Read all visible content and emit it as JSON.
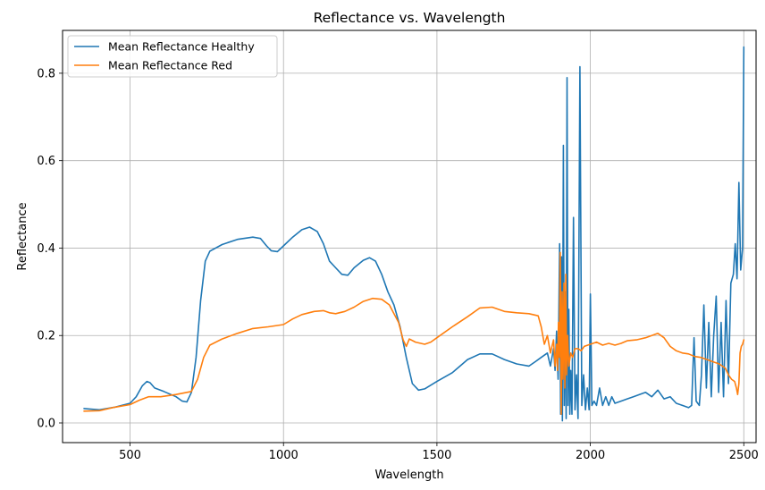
{
  "chart_data": {
    "type": "line",
    "title": "Reflectance vs. Wavelength",
    "xlabel": "Wavelength",
    "ylabel": "Reflectance",
    "xlim": [
      280,
      2540
    ],
    "ylim": [
      -0.045,
      0.898
    ],
    "xticks": [
      500,
      1000,
      1500,
      2000,
      2500
    ],
    "yticks": [
      0.0,
      0.2,
      0.4,
      0.6,
      0.8
    ],
    "ytick_labels": [
      "0.0",
      "0.2",
      "0.4",
      "0.6",
      "0.8"
    ],
    "grid": true,
    "legend_position": "upper-left",
    "series": [
      {
        "name": "Mean Reflectance Healthy",
        "color": "#1f77b4",
        "points": [
          [
            350,
            0.033
          ],
          [
            400,
            0.03
          ],
          [
            450,
            0.036
          ],
          [
            500,
            0.045
          ],
          [
            520,
            0.06
          ],
          [
            540,
            0.085
          ],
          [
            555,
            0.095
          ],
          [
            565,
            0.092
          ],
          [
            580,
            0.08
          ],
          [
            610,
            0.072
          ],
          [
            650,
            0.06
          ],
          [
            670,
            0.05
          ],
          [
            685,
            0.048
          ],
          [
            700,
            0.07
          ],
          [
            715,
            0.15
          ],
          [
            730,
            0.28
          ],
          [
            745,
            0.37
          ],
          [
            760,
            0.393
          ],
          [
            800,
            0.408
          ],
          [
            850,
            0.42
          ],
          [
            900,
            0.425
          ],
          [
            925,
            0.422
          ],
          [
            945,
            0.405
          ],
          [
            960,
            0.394
          ],
          [
            980,
            0.392
          ],
          [
            1000,
            0.405
          ],
          [
            1030,
            0.425
          ],
          [
            1060,
            0.442
          ],
          [
            1085,
            0.448
          ],
          [
            1110,
            0.438
          ],
          [
            1130,
            0.41
          ],
          [
            1150,
            0.37
          ],
          [
            1170,
            0.355
          ],
          [
            1190,
            0.34
          ],
          [
            1210,
            0.338
          ],
          [
            1230,
            0.355
          ],
          [
            1260,
            0.372
          ],
          [
            1280,
            0.378
          ],
          [
            1300,
            0.37
          ],
          [
            1320,
            0.34
          ],
          [
            1340,
            0.3
          ],
          [
            1360,
            0.27
          ],
          [
            1380,
            0.22
          ],
          [
            1400,
            0.15
          ],
          [
            1420,
            0.09
          ],
          [
            1440,
            0.075
          ],
          [
            1460,
            0.078
          ],
          [
            1500,
            0.095
          ],
          [
            1550,
            0.115
          ],
          [
            1600,
            0.145
          ],
          [
            1640,
            0.158
          ],
          [
            1680,
            0.158
          ],
          [
            1720,
            0.145
          ],
          [
            1760,
            0.135
          ],
          [
            1800,
            0.13
          ],
          [
            1820,
            0.14
          ],
          [
            1840,
            0.15
          ],
          [
            1860,
            0.16
          ],
          [
            1870,
            0.13
          ],
          [
            1880,
            0.17
          ],
          [
            1885,
            0.12
          ],
          [
            1890,
            0.21
          ],
          [
            1895,
            0.1
          ],
          [
            1900,
            0.41
          ],
          [
            1903,
            0.02
          ],
          [
            1906,
            0.38
          ],
          [
            1909,
            0.005
          ],
          [
            1912,
            0.635
          ],
          [
            1915,
            0.04
          ],
          [
            1918,
            0.3
          ],
          [
            1921,
            0.01
          ],
          [
            1924,
            0.79
          ],
          [
            1927,
            0.04
          ],
          [
            1930,
            0.26
          ],
          [
            1933,
            0.02
          ],
          [
            1936,
            0.12
          ],
          [
            1940,
            0.02
          ],
          [
            1945,
            0.47
          ],
          [
            1950,
            0.03
          ],
          [
            1955,
            0.11
          ],
          [
            1960,
            0.01
          ],
          [
            1966,
            0.815
          ],
          [
            1972,
            0.04
          ],
          [
            1978,
            0.11
          ],
          [
            1984,
            0.03
          ],
          [
            1990,
            0.08
          ],
          [
            1996,
            0.03
          ],
          [
            2000,
            0.295
          ],
          [
            2005,
            0.04
          ],
          [
            2012,
            0.05
          ],
          [
            2020,
            0.04
          ],
          [
            2030,
            0.08
          ],
          [
            2040,
            0.04
          ],
          [
            2050,
            0.06
          ],
          [
            2060,
            0.04
          ],
          [
            2070,
            0.06
          ],
          [
            2080,
            0.045
          ],
          [
            2100,
            0.05
          ],
          [
            2120,
            0.055
          ],
          [
            2140,
            0.06
          ],
          [
            2160,
            0.065
          ],
          [
            2180,
            0.07
          ],
          [
            2200,
            0.06
          ],
          [
            2220,
            0.075
          ],
          [
            2240,
            0.055
          ],
          [
            2260,
            0.06
          ],
          [
            2280,
            0.045
          ],
          [
            2300,
            0.04
          ],
          [
            2320,
            0.035
          ],
          [
            2330,
            0.04
          ],
          [
            2338,
            0.195
          ],
          [
            2345,
            0.05
          ],
          [
            2355,
            0.04
          ],
          [
            2362,
            0.11
          ],
          [
            2370,
            0.27
          ],
          [
            2378,
            0.08
          ],
          [
            2386,
            0.23
          ],
          [
            2394,
            0.06
          ],
          [
            2402,
            0.2
          ],
          [
            2410,
            0.29
          ],
          [
            2418,
            0.07
          ],
          [
            2426,
            0.23
          ],
          [
            2434,
            0.06
          ],
          [
            2442,
            0.28
          ],
          [
            2450,
            0.09
          ],
          [
            2458,
            0.32
          ],
          [
            2466,
            0.34
          ],
          [
            2472,
            0.41
          ],
          [
            2478,
            0.33
          ],
          [
            2484,
            0.55
          ],
          [
            2490,
            0.35
          ],
          [
            2496,
            0.4
          ],
          [
            2500,
            0.86
          ]
        ]
      },
      {
        "name": "Mean Reflectance Red",
        "color": "#ff7f0e",
        "points": [
          [
            350,
            0.027
          ],
          [
            400,
            0.028
          ],
          [
            450,
            0.036
          ],
          [
            500,
            0.042
          ],
          [
            530,
            0.052
          ],
          [
            560,
            0.06
          ],
          [
            600,
            0.06
          ],
          [
            650,
            0.065
          ],
          [
            700,
            0.072
          ],
          [
            720,
            0.1
          ],
          [
            740,
            0.15
          ],
          [
            760,
            0.178
          ],
          [
            800,
            0.192
          ],
          [
            850,
            0.205
          ],
          [
            900,
            0.216
          ],
          [
            950,
            0.22
          ],
          [
            1000,
            0.225
          ],
          [
            1030,
            0.238
          ],
          [
            1060,
            0.248
          ],
          [
            1100,
            0.255
          ],
          [
            1130,
            0.257
          ],
          [
            1150,
            0.252
          ],
          [
            1170,
            0.25
          ],
          [
            1200,
            0.255
          ],
          [
            1230,
            0.265
          ],
          [
            1260,
            0.278
          ],
          [
            1290,
            0.285
          ],
          [
            1320,
            0.283
          ],
          [
            1345,
            0.27
          ],
          [
            1360,
            0.25
          ],
          [
            1375,
            0.23
          ],
          [
            1390,
            0.19
          ],
          [
            1400,
            0.175
          ],
          [
            1410,
            0.192
          ],
          [
            1430,
            0.185
          ],
          [
            1460,
            0.18
          ],
          [
            1480,
            0.185
          ],
          [
            1500,
            0.195
          ],
          [
            1550,
            0.22
          ],
          [
            1600,
            0.243
          ],
          [
            1640,
            0.263
          ],
          [
            1680,
            0.265
          ],
          [
            1720,
            0.255
          ],
          [
            1760,
            0.252
          ],
          [
            1800,
            0.25
          ],
          [
            1830,
            0.245
          ],
          [
            1840,
            0.22
          ],
          [
            1850,
            0.18
          ],
          [
            1860,
            0.2
          ],
          [
            1870,
            0.16
          ],
          [
            1880,
            0.19
          ],
          [
            1885,
            0.13
          ],
          [
            1890,
            0.18
          ],
          [
            1893,
            0.12
          ],
          [
            1896,
            0.23
          ],
          [
            1899,
            0.15
          ],
          [
            1902,
            0.39
          ],
          [
            1905,
            0.02
          ],
          [
            1908,
            0.3
          ],
          [
            1911,
            0.1
          ],
          [
            1914,
            0.32
          ],
          [
            1917,
            0.08
          ],
          [
            1920,
            0.34
          ],
          [
            1923,
            0.11
          ],
          [
            1926,
            0.2
          ],
          [
            1930,
            0.13
          ],
          [
            1936,
            0.16
          ],
          [
            1942,
            0.15
          ],
          [
            1950,
            0.17
          ],
          [
            1960,
            0.17
          ],
          [
            1970,
            0.165
          ],
          [
            1980,
            0.175
          ],
          [
            2000,
            0.18
          ],
          [
            2020,
            0.185
          ],
          [
            2040,
            0.178
          ],
          [
            2060,
            0.182
          ],
          [
            2080,
            0.178
          ],
          [
            2100,
            0.182
          ],
          [
            2120,
            0.188
          ],
          [
            2150,
            0.19
          ],
          [
            2180,
            0.195
          ],
          [
            2200,
            0.2
          ],
          [
            2220,
            0.205
          ],
          [
            2240,
            0.195
          ],
          [
            2260,
            0.175
          ],
          [
            2280,
            0.165
          ],
          [
            2300,
            0.16
          ],
          [
            2320,
            0.158
          ],
          [
            2340,
            0.152
          ],
          [
            2360,
            0.15
          ],
          [
            2380,
            0.145
          ],
          [
            2400,
            0.14
          ],
          [
            2420,
            0.135
          ],
          [
            2440,
            0.125
          ],
          [
            2450,
            0.11
          ],
          [
            2460,
            0.1
          ],
          [
            2470,
            0.095
          ],
          [
            2476,
            0.08
          ],
          [
            2480,
            0.065
          ],
          [
            2484,
            0.09
          ],
          [
            2488,
            0.16
          ],
          [
            2492,
            0.175
          ],
          [
            2496,
            0.18
          ],
          [
            2500,
            0.19
          ]
        ]
      }
    ]
  }
}
